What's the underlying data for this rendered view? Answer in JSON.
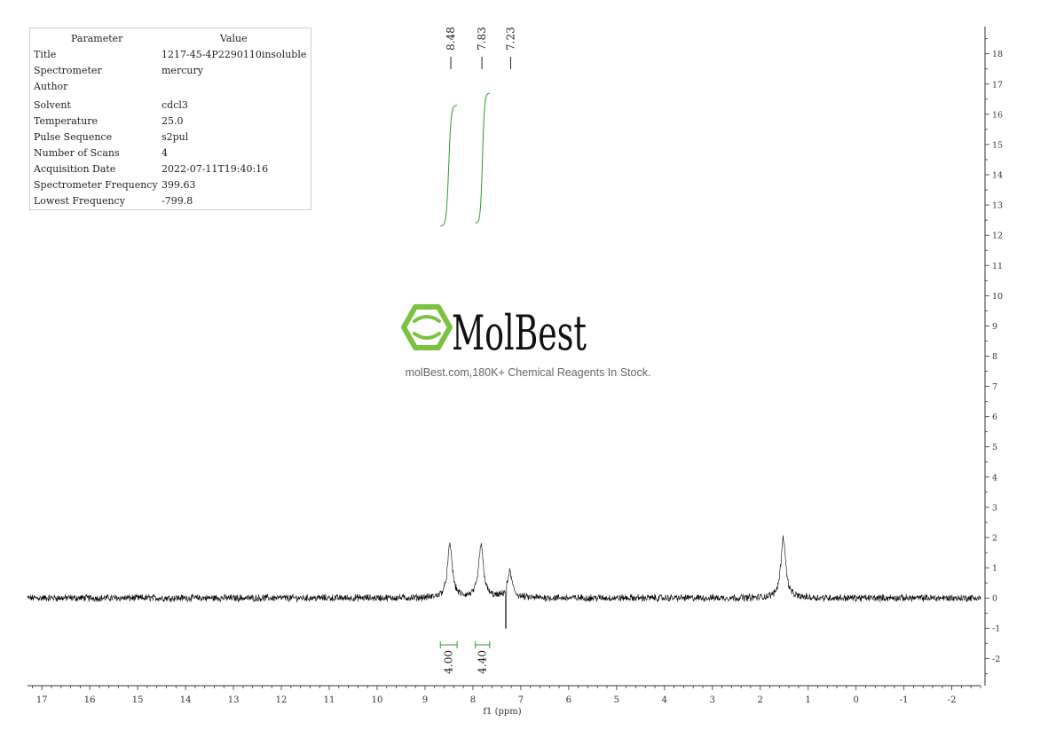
{
  "parameters": {
    "header": {
      "parameter": "Parameter",
      "value": "Value"
    },
    "rows": [
      {
        "key": "Title",
        "value": "1217-45-4P2290110insoluble"
      },
      {
        "key": "Spectrometer",
        "value": "mercury"
      },
      {
        "key": "Author",
        "value": ""
      },
      {
        "key": "Solvent",
        "value": "cdcl3"
      },
      {
        "key": "Temperature",
        "value": "25.0"
      },
      {
        "key": "Pulse Sequence",
        "value": "s2pul"
      },
      {
        "key": "Number of Scans",
        "value": "4"
      },
      {
        "key": "Acquisition Date",
        "value": "2022-07-11T19:40:16"
      },
      {
        "key": "Spectrometer Frequency",
        "value": "399.63"
      },
      {
        "key": "Lowest Frequency",
        "value": "-799.8"
      }
    ]
  },
  "watermark": {
    "brand": "MolBest",
    "tagline": "molBest.com,180K+ Chemical Reagents In Stock.",
    "logo_color": "#7cc242"
  },
  "chart_data": {
    "type": "line",
    "xlabel": "f1 (ppm)",
    "xlim": [
      17.3,
      -2.6
    ],
    "x_reversed": true,
    "xticks": [
      17,
      16,
      15,
      14,
      13,
      12,
      11,
      10,
      9,
      8,
      7,
      6,
      5,
      4,
      3,
      2,
      1,
      0,
      -1,
      -2
    ],
    "ylim": [
      -2.9,
      18.9
    ],
    "yticks": [
      -2,
      -1,
      0,
      1,
      2,
      3,
      4,
      5,
      6,
      7,
      8,
      9,
      10,
      11,
      12,
      13,
      14,
      15,
      16,
      17,
      18
    ],
    "y_axis_position": "right",
    "series": [
      {
        "color": "#000000",
        "peaks": [
          {
            "ppm": 8.48,
            "height": 1.75,
            "width": 0.06
          },
          {
            "ppm": 7.83,
            "height": 1.75,
            "width": 0.06
          },
          {
            "ppm": 7.23,
            "height": 0.85,
            "width": 0.06
          },
          {
            "ppm": 1.52,
            "height": 2.0,
            "width": 0.06
          }
        ],
        "solvent_spike": {
          "ppm": 7.31,
          "depth": -1.0
        },
        "noise_amplitude": 0.1
      }
    ],
    "peak_labels": [
      {
        "ppm": 8.48,
        "label": "8.48"
      },
      {
        "ppm": 7.83,
        "label": "7.83"
      },
      {
        "ppm": 7.23,
        "label": "7.23"
      }
    ],
    "integrations": [
      {
        "from": 8.68,
        "to": 8.33,
        "value": "4.00",
        "curve_start": 12.3,
        "curve_end": 16.3
      },
      {
        "from": 7.95,
        "to": 7.65,
        "value": "4.40",
        "curve_start": 12.4,
        "curve_end": 16.7
      }
    ],
    "integration_color": "#2e9b2e"
  }
}
